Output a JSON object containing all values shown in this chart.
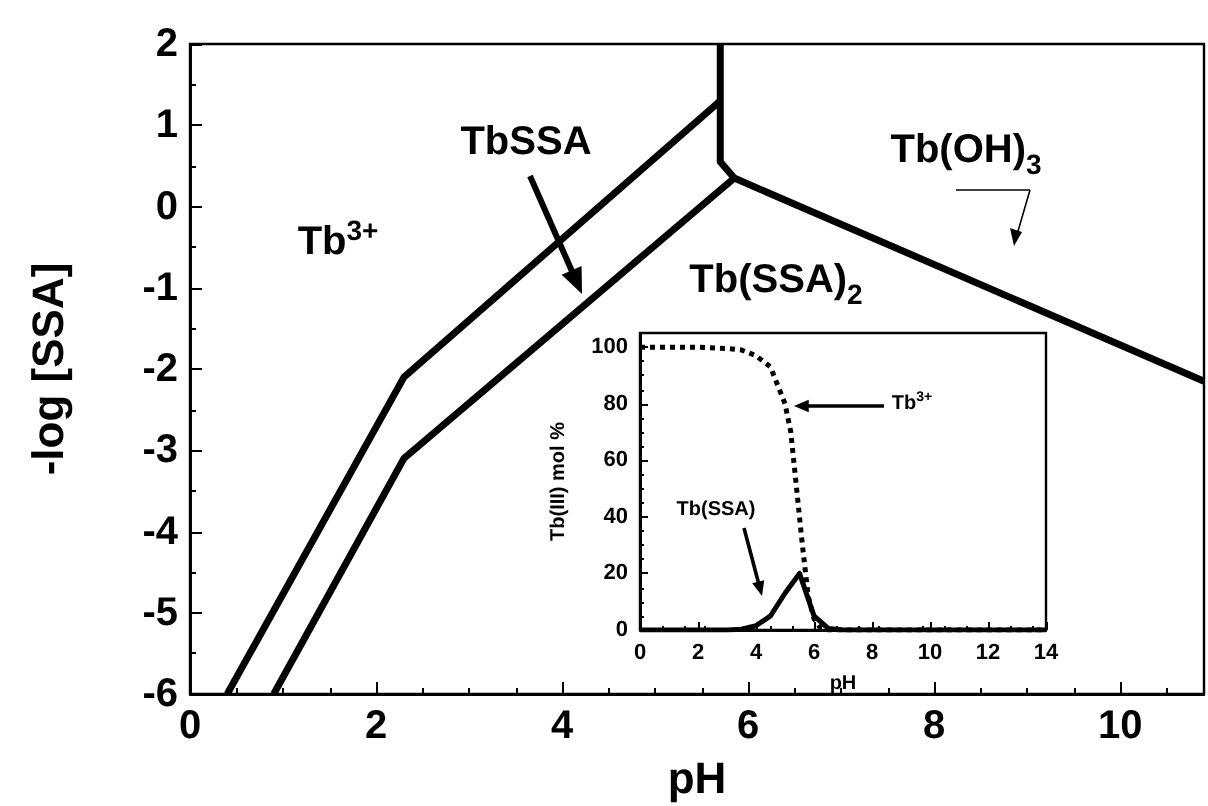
{
  "chart_data": [
    {
      "type": "line",
      "xlabel": "pH",
      "ylabel": "-log [SSA]",
      "xlim": [
        0,
        10.9
      ],
      "ylim": [
        -6,
        2
      ],
      "xticks": [
        0,
        2,
        4,
        6,
        8,
        10
      ],
      "yticks": [
        -6,
        -5,
        -4,
        -3,
        -2,
        -1,
        0,
        1,
        2
      ],
      "grid": false,
      "marker": "none",
      "line_style": "solid",
      "series": [
        {
          "color": "#000000",
          "x": [
            0.4,
            2.3,
            5.7
          ],
          "values": [
            -6,
            -2.1,
            1.3
          ]
        },
        {
          "color": "#000000",
          "x": [
            0.9,
            2.3,
            5.85
          ],
          "values": [
            -6,
            -3.1,
            0.35
          ]
        },
        {
          "color": "#000000",
          "x": [
            5.7,
            5.7,
            5.85
          ],
          "values": [
            2,
            0.55,
            0.35
          ]
        },
        {
          "color": "#000000",
          "x": [
            5.85,
            10.9
          ],
          "values": [
            0.35,
            -2.15
          ]
        }
      ],
      "annotations": [
        "Tb$^{3+}$",
        "TbSSA",
        "Tb(SSA)$_{2}$",
        "Tb(OH)$_{3}$"
      ]
    },
    {
      "type": "line",
      "xlabel": "pH",
      "ylabel": "Tb(III) mol %",
      "xlim": [
        0,
        14
      ],
      "ylim": [
        0,
        105
      ],
      "xticks": [
        0,
        2,
        4,
        6,
        8,
        10,
        12,
        14
      ],
      "yticks": [
        0,
        20,
        40,
        60,
        80,
        100
      ],
      "grid": false,
      "marker": "none",
      "series": [
        {
          "color": "#000000",
          "line_style": "dotted",
          "x": [
            0,
            1,
            2,
            3,
            3.5,
            4,
            4.5,
            5,
            5.2,
            5.4,
            5.6,
            5.8,
            6,
            6.2,
            6.5,
            7,
            14
          ],
          "values": [
            100,
            100,
            100,
            99.5,
            99,
            97,
            93,
            80,
            70,
            50,
            30,
            12,
            4,
            1,
            0,
            0,
            0
          ]
        },
        {
          "color": "#000000",
          "line_style": "solid",
          "x": [
            0,
            3,
            3.5,
            4,
            4.5,
            5,
            5.5,
            6,
            6.5,
            7,
            14
          ],
          "values": [
            0,
            0,
            0.3,
            1.5,
            5,
            13,
            20,
            5,
            0.5,
            0,
            0
          ]
        }
      ],
      "annotations": [
        "Tb$^{3+}$",
        "Tb(SSA)"
      ]
    }
  ]
}
